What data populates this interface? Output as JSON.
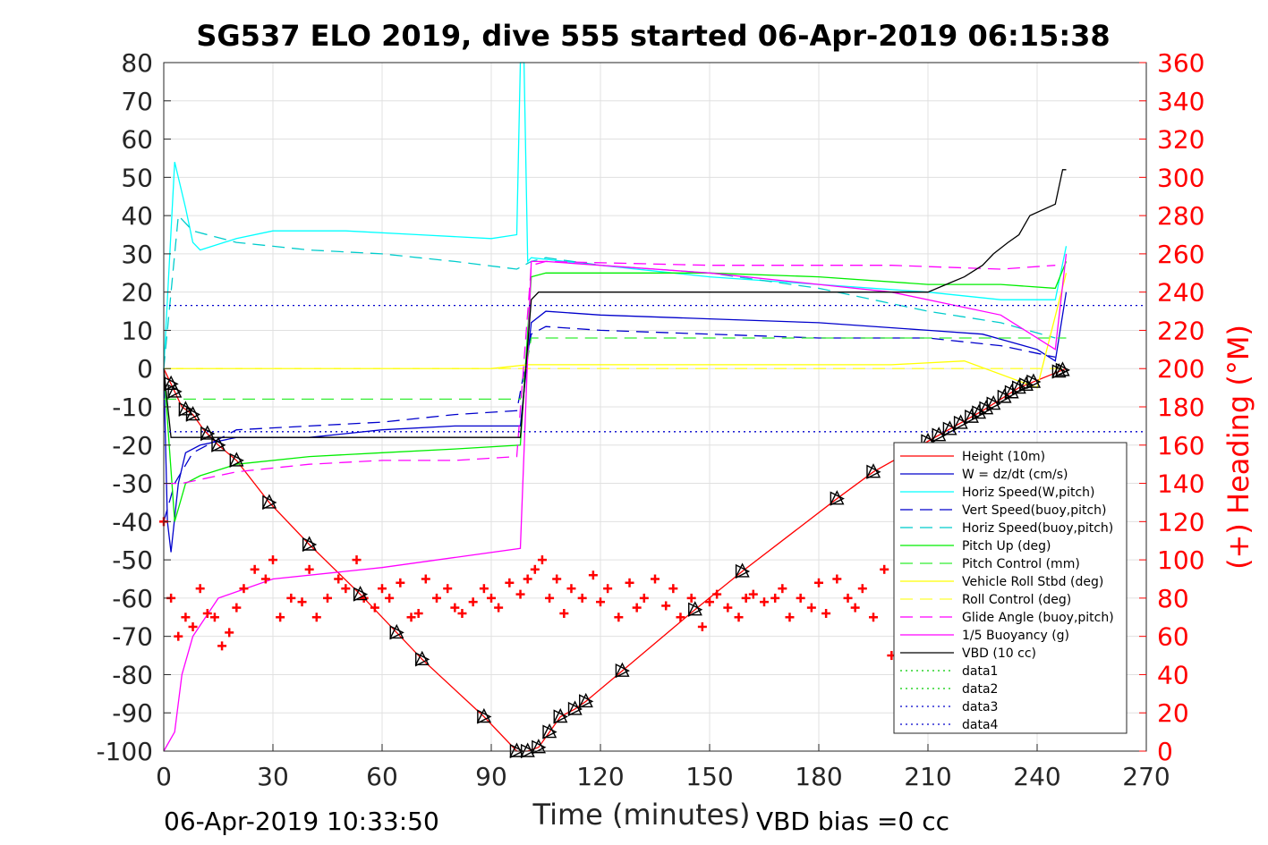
{
  "chart_data": {
    "type": "line",
    "title": "SG537 ELO 2019, dive 555 started 06-Apr-2019 06:15:38",
    "xlabel": "Time (minutes)",
    "ylabel_right": "(+) Heading (°M)",
    "xlim": [
      0,
      270
    ],
    "ylim_left": [
      -100,
      80
    ],
    "ylim_right": [
      0,
      360
    ],
    "x_ticks": [
      0,
      30,
      60,
      90,
      120,
      150,
      180,
      210,
      240,
      270
    ],
    "y_ticks_left": [
      80,
      70,
      60,
      50,
      40,
      30,
      20,
      10,
      0,
      -10,
      -20,
      -30,
      -40,
      -50,
      -60,
      -70,
      -80,
      -90,
      -100
    ],
    "y_ticks_right": [
      360,
      340,
      320,
      300,
      280,
      260,
      240,
      220,
      200,
      180,
      160,
      140,
      120,
      100,
      80,
      60,
      40,
      20,
      0
    ],
    "grid": true,
    "legend_position": "bottom-right",
    "footer_left": "06-Apr-2019 10:33:50",
    "footer_right": "VBD bias =0 cc",
    "series": [
      {
        "name": "Height (10m)",
        "color": "#ff0000",
        "dash": "solid",
        "axis": "left",
        "x": [
          0,
          2,
          5,
          8,
          11,
          15,
          20,
          29,
          40,
          54,
          64,
          71,
          88,
          97,
          100,
          103,
          106,
          109,
          113,
          116,
          126,
          146,
          159,
          185,
          195,
          210,
          225,
          235,
          248
        ],
        "y": [
          0,
          -4,
          -10,
          -12,
          -16,
          -20,
          -24,
          -35,
          -46,
          -59,
          -69,
          -76,
          -91,
          -100,
          -100,
          -99,
          -95,
          -91,
          -89,
          -87,
          -79,
          -63,
          -53,
          -34,
          -27,
          -19,
          -11,
          -5,
          0
        ]
      },
      {
        "name": "W = dz/dt (cm/s)",
        "color": "#0000cc",
        "dash": "solid",
        "axis": "left",
        "x": [
          0,
          1,
          2,
          4,
          6,
          10,
          20,
          40,
          60,
          80,
          98,
          101,
          105,
          120,
          150,
          180,
          210,
          225,
          240,
          245,
          248
        ],
        "y": [
          0,
          -40,
          -48,
          -30,
          -22,
          -20,
          -18,
          -18,
          -16,
          -15,
          -15,
          12,
          15,
          14,
          13,
          12,
          10,
          9,
          5,
          2,
          20
        ]
      },
      {
        "name": "Horiz Speed(W,pitch)",
        "color": "#00ffff",
        "dash": "solid",
        "axis": "left",
        "x": [
          0,
          3,
          6,
          8,
          10,
          20,
          30,
          50,
          70,
          90,
          97,
          98,
          99,
          100,
          101,
          120,
          150,
          180,
          210,
          230,
          245,
          248
        ],
        "y": [
          0,
          54,
          42,
          33,
          31,
          34,
          36,
          36,
          35,
          34,
          35,
          80,
          80,
          28,
          29,
          27,
          24,
          22,
          20,
          18,
          18,
          32
        ]
      },
      {
        "name": "Vert Speed(buoy,pitch)",
        "color": "#0000cc",
        "dash": "dashed",
        "axis": "left",
        "x": [
          0,
          3,
          8,
          20,
          40,
          60,
          80,
          97,
          101,
          105,
          120,
          150,
          180,
          210,
          230,
          245
        ],
        "y": [
          -40,
          -30,
          -22,
          -16,
          -15,
          -14,
          -12,
          -11,
          9,
          11,
          10,
          9,
          8,
          8,
          6,
          3
        ]
      },
      {
        "name": "Horiz Speed(buoy,pitch)",
        "color": "#00cccc",
        "dash": "dashed",
        "axis": "left",
        "x": [
          0,
          4,
          8,
          20,
          40,
          60,
          80,
          97,
          101,
          105,
          120,
          150,
          180,
          210,
          230,
          245
        ],
        "y": [
          0,
          40,
          36,
          33,
          31,
          30,
          28,
          26,
          28,
          29,
          27,
          25,
          21,
          15,
          12,
          8
        ]
      },
      {
        "name": "Pitch Up (deg)",
        "color": "#00ee00",
        "dash": "solid",
        "axis": "left",
        "x": [
          0,
          3,
          6,
          10,
          20,
          40,
          60,
          80,
          98,
          101,
          105,
          120,
          150,
          180,
          210,
          230,
          245,
          248
        ],
        "y": [
          0,
          -40,
          -30,
          -28,
          -25,
          -23,
          -22,
          -21,
          -20,
          24,
          25,
          25,
          25,
          24,
          22,
          22,
          21,
          28
        ]
      },
      {
        "name": "Pitch Control (mm)",
        "color": "#33ee33",
        "dash": "dashed",
        "axis": "left",
        "x": [
          0,
          5,
          98,
          101,
          248
        ],
        "y": [
          -8,
          -8,
          -8,
          8,
          8
        ]
      },
      {
        "name": "Vehicle Roll Stbd (deg)",
        "color": "#ffff00",
        "dash": "solid",
        "axis": "left",
        "x": [
          0,
          10,
          30,
          60,
          90,
          100,
          120,
          150,
          180,
          200,
          220,
          240,
          248
        ],
        "y": [
          0,
          0,
          0,
          0,
          0,
          1,
          1,
          1,
          1,
          1,
          2,
          -5,
          25
        ]
      },
      {
        "name": "Roll Control (deg)",
        "color": "#ffff33",
        "dash": "dashed",
        "axis": "left",
        "x": [
          0,
          248
        ],
        "y": [
          0,
          0
        ]
      },
      {
        "name": "Glide Angle (buoy,pitch)",
        "color": "#ff00ff",
        "dash": "dashed",
        "axis": "left",
        "x": [
          0,
          5,
          20,
          40,
          60,
          80,
          97,
          101,
          105,
          150,
          200,
          230,
          245
        ],
        "y": [
          -30,
          -30,
          -27,
          -25,
          -24,
          -24,
          -23,
          27,
          28,
          27,
          27,
          26,
          27
        ]
      },
      {
        "name": "1/5 Buoyancy (g)",
        "color": "#ff00ff",
        "dash": "solid",
        "axis": "left",
        "x": [
          0,
          3,
          5,
          8,
          15,
          30,
          60,
          98,
          101,
          105,
          150,
          200,
          230,
          245,
          248
        ],
        "y": [
          -100,
          -95,
          -80,
          -70,
          -60,
          -55,
          -52,
          -47,
          28,
          28,
          25,
          20,
          14,
          5,
          30
        ]
      },
      {
        "name": "VBD (10 cc)",
        "color": "#000000",
        "dash": "solid",
        "axis": "left",
        "x": [
          0,
          2,
          5,
          98,
          101,
          103,
          210,
          215,
          220,
          225,
          228,
          232,
          235,
          238,
          245,
          247,
          248
        ],
        "y": [
          0,
          -18,
          -18,
          -18,
          18,
          20,
          20,
          22,
          24,
          27,
          30,
          33,
          35,
          40,
          43,
          52,
          52
        ]
      },
      {
        "name": "data1",
        "color": "#00cc00",
        "dash": "dotted",
        "axis": "left",
        "x": [],
        "y": []
      },
      {
        "name": "data2",
        "color": "#00cc00",
        "dash": "dotted",
        "axis": "left",
        "x": [],
        "y": []
      },
      {
        "name": "data3",
        "color": "#0000cc",
        "dash": "dotted",
        "axis": "left",
        "x": [
          0,
          270
        ],
        "y": [
          16.5,
          16.5
        ]
      },
      {
        "name": "data4",
        "color": "#0000cc",
        "dash": "dotted",
        "axis": "left",
        "x": [
          0,
          270
        ],
        "y": [
          -16.5,
          -16.5
        ]
      }
    ],
    "heading": {
      "axis": "right",
      "color": "#ff0000",
      "marker": "+",
      "x": [
        0,
        2,
        4,
        6,
        8,
        10,
        12,
        14,
        16,
        18,
        20,
        22,
        25,
        28,
        30,
        32,
        35,
        38,
        40,
        42,
        45,
        48,
        50,
        53,
        55,
        58,
        60,
        62,
        65,
        68,
        70,
        72,
        75,
        78,
        80,
        82,
        85,
        88,
        90,
        92,
        95,
        98,
        100,
        102,
        104,
        106,
        108,
        110,
        112,
        115,
        118,
        120,
        122,
        125,
        128,
        130,
        132,
        135,
        138,
        140,
        142,
        145,
        148,
        150,
        152,
        155,
        158,
        160,
        162,
        165,
        168,
        170,
        172,
        175,
        178,
        180,
        182,
        185,
        188,
        190,
        192,
        195,
        198,
        200
      ],
      "y": [
        120,
        80,
        60,
        70,
        65,
        85,
        72,
        70,
        55,
        62,
        75,
        85,
        95,
        90,
        100,
        70,
        80,
        78,
        95,
        70,
        80,
        90,
        85,
        100,
        80,
        75,
        85,
        80,
        88,
        70,
        72,
        90,
        80,
        85,
        75,
        72,
        78,
        85,
        80,
        75,
        88,
        82,
        90,
        95,
        100,
        80,
        90,
        72,
        85,
        80,
        92,
        78,
        85,
        70,
        88,
        75,
        80,
        90,
        76,
        85,
        70,
        80,
        65,
        78,
        82,
        75,
        70,
        80,
        82,
        78,
        80,
        85,
        70,
        80,
        75,
        88,
        72,
        90,
        80,
        75,
        85,
        70,
        95,
        50
      ]
    },
    "markers": {
      "color": "#000000",
      "x": [
        2,
        3,
        6,
        8,
        12,
        15,
        20,
        29,
        40,
        54,
        64,
        71,
        88,
        97,
        100,
        103,
        106,
        109,
        113,
        116,
        126,
        146,
        159,
        185,
        195,
        210,
        213,
        216,
        219,
        222,
        224,
        226,
        228,
        231,
        233,
        235,
        237,
        239,
        246,
        247
      ]
    }
  }
}
